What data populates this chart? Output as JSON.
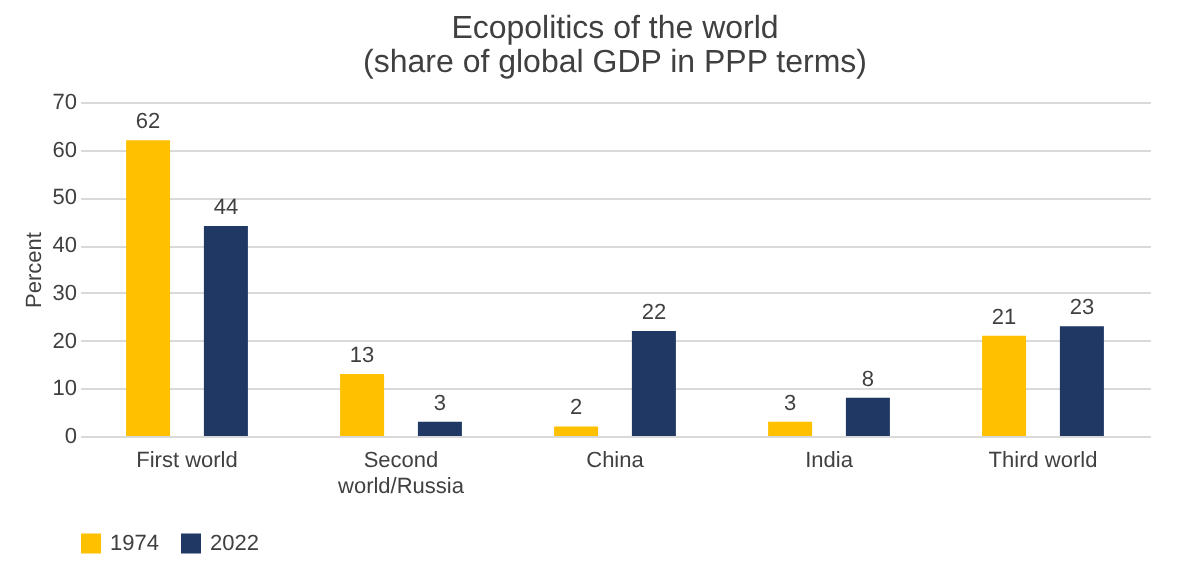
{
  "chart_data": {
    "type": "bar",
    "title": "Ecopolitics of the world",
    "subtitle": "(share of global GDP in PPP terms)",
    "ylabel": "Percent",
    "categories": [
      "First world",
      "Second world/Russia",
      "China",
      "India",
      "Third world"
    ],
    "series": [
      {
        "name": "1974",
        "color": "#ffc000",
        "values": [
          62,
          13,
          2,
          3,
          21
        ]
      },
      {
        "name": "2022",
        "color": "#203864",
        "values": [
          44,
          3,
          22,
          8,
          23
        ]
      }
    ],
    "ylim": [
      0,
      70
    ],
    "yticks": [
      0,
      10,
      20,
      30,
      40,
      50,
      60,
      70
    ],
    "grid": "y",
    "legend": "bottom",
    "data_labels": true
  }
}
